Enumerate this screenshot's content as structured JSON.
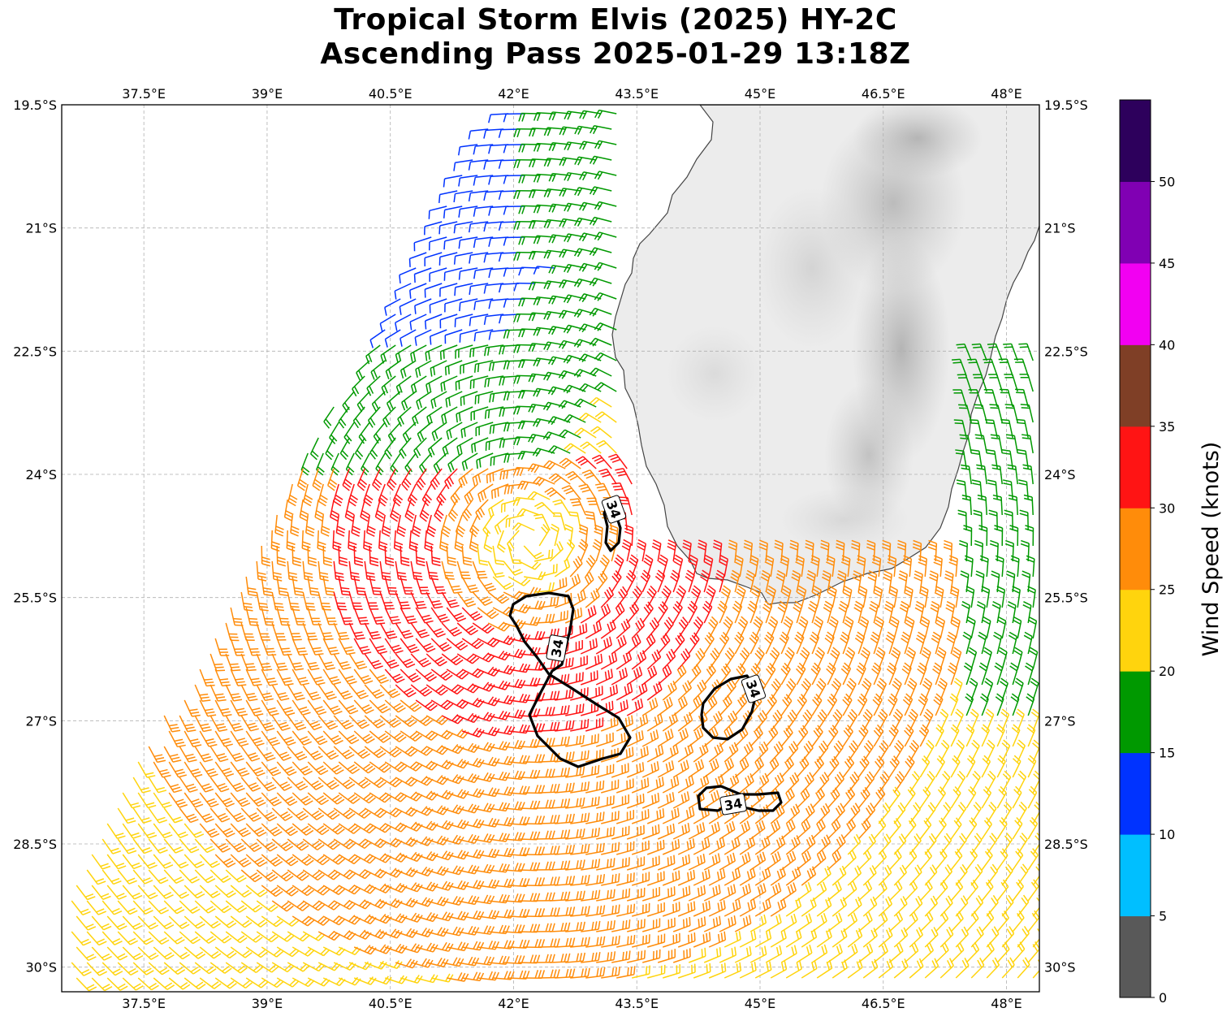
{
  "title": {
    "line1": "Tropical Storm Elvis (2025) HY-2C",
    "line2": "Ascending Pass 2025-01-29 13:18Z"
  },
  "map": {
    "lon_range": [
      36.5,
      48.4
    ],
    "lat_range": [
      -30.3,
      -19.5
    ],
    "lon_ticks": [
      {
        "value": 37.5,
        "label": "37.5°E"
      },
      {
        "value": 39,
        "label": "39°E"
      },
      {
        "value": 40.5,
        "label": "40.5°E"
      },
      {
        "value": 42,
        "label": "42°E"
      },
      {
        "value": 43.5,
        "label": "43.5°E"
      },
      {
        "value": 45,
        "label": "45°E"
      },
      {
        "value": 46.5,
        "label": "46.5°E"
      },
      {
        "value": 48,
        "label": "48°E"
      }
    ],
    "lat_ticks": [
      {
        "value": -19.5,
        "label": "19.5°S"
      },
      {
        "value": -21,
        "label": "21°S"
      },
      {
        "value": -22.5,
        "label": "22.5°S"
      },
      {
        "value": -24,
        "label": "24°S"
      },
      {
        "value": -25.5,
        "label": "25.5°S"
      },
      {
        "value": -27,
        "label": "27°S"
      },
      {
        "value": -28.5,
        "label": "28.5°S"
      },
      {
        "value": -30,
        "label": "30°S"
      }
    ],
    "gridlines": true,
    "land": "Madagascar shaded terrain (grayscale)",
    "storm_center": {
      "lon": 42.2,
      "lat": -24.8
    }
  },
  "contours": {
    "label": "34",
    "units": "knots"
  },
  "colorbar": {
    "label": "Wind Speed (knots)",
    "ticks": [
      "0",
      "5",
      "10",
      "15",
      "20",
      "25",
      "30",
      "35",
      "40",
      "45",
      "50"
    ],
    "bins": [
      {
        "from": 0,
        "to": 5,
        "color": "#595959"
      },
      {
        "from": 5,
        "to": 10,
        "color": "#00bfff"
      },
      {
        "from": 10,
        "to": 15,
        "color": "#0033ff"
      },
      {
        "from": 15,
        "to": 20,
        "color": "#009900"
      },
      {
        "from": 20,
        "to": 25,
        "color": "#ffd40d"
      },
      {
        "from": 25,
        "to": 30,
        "color": "#ff8c0a"
      },
      {
        "from": 30,
        "to": 35,
        "color": "#ff1414"
      },
      {
        "from": 35,
        "to": 40,
        "color": "#7f3f26"
      },
      {
        "from": 40,
        "to": 45,
        "color": "#f200f2"
      },
      {
        "from": 45,
        "to": 50,
        "color": "#8000b3"
      },
      {
        "from": 50,
        "to": 55,
        "color": "#2d005c"
      }
    ]
  }
}
